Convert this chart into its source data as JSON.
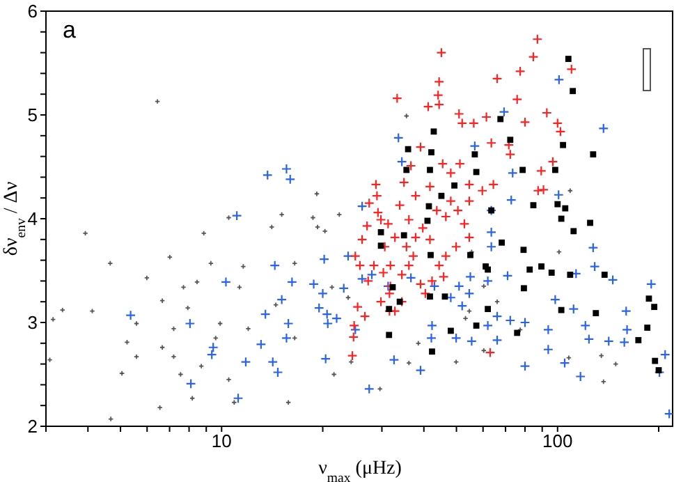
{
  "chart_data": {
    "type": "scatter",
    "xlabel": "ν$_{max}$  (μHz)",
    "ylabel": "δν$_{env}$ / Δν",
    "log": "x",
    "annotations": [
      "a"
    ],
    "xlim": [
      3,
      220
    ],
    "ylim": [
      2,
      6
    ],
    "xticks": [
      {
        "value": 3,
        "label": null
      },
      {
        "value": 4,
        "label": null
      },
      {
        "value": 5,
        "label": null
      },
      {
        "value": 6,
        "label": null
      },
      {
        "value": 7,
        "label": null
      },
      {
        "value": 8,
        "label": null
      },
      {
        "value": 9,
        "label": null
      },
      10,
      {
        "value": 20,
        "label": null
      },
      {
        "value": 30,
        "label": null
      },
      {
        "value": 40,
        "label": null
      },
      {
        "value": 50,
        "label": null
      },
      {
        "value": 60,
        "label": null
      },
      {
        "value": 70,
        "label": null
      },
      {
        "value": 80,
        "label": null
      },
      {
        "value": 90,
        "label": null
      },
      100,
      {
        "value": 200,
        "label": null
      }
    ],
    "yticks": [
      2,
      {
        "value": 2.2,
        "label": null
      },
      {
        "value": 2.4,
        "label": null
      },
      {
        "value": 2.6,
        "label": null
      },
      {
        "value": 2.8,
        "label": null
      },
      3,
      {
        "value": 3.2,
        "label": null
      },
      {
        "value": 3.4,
        "label": null
      },
      {
        "value": 3.6,
        "label": null
      },
      {
        "value": 3.8,
        "label": null
      },
      4,
      {
        "value": 4.2,
        "label": null
      },
      {
        "value": 4.4,
        "label": null
      },
      {
        "value": 4.6,
        "label": null
      },
      {
        "value": 4.8,
        "label": null
      },
      5,
      {
        "value": 5.2,
        "label": null
      },
      {
        "value": 5.4,
        "label": null
      },
      {
        "value": 5.6,
        "label": null
      },
      {
        "value": 5.8,
        "label": null
      },
      6
    ],
    "series": [
      {
        "color": "#555555",
        "marker": "cross",
        "x": [
          3.15,
          3.36,
          3.08,
          3.93,
          4.12,
          4.66,
          4.68,
          5.05,
          5.58,
          5.99,
          6.44,
          6.55,
          6.66,
          7.01,
          7.2,
          7.55,
          7.93,
          8.18,
          8.45,
          8.85,
          9.29,
          9.6,
          10.5,
          10.5,
          11.6,
          12.0,
          10.9,
          14.1,
          14.5,
          15.1,
          15.8,
          16.5,
          18.7,
          19.2,
          19.3,
          20.3,
          21.3,
          21.6,
          5.23,
          5.58,
          6.66,
          8.7,
          7.2,
          9.9,
          7.7,
          11.3,
          16.5,
          35.5,
          109,
          29.6,
          137,
          77.4,
          108,
          23.8,
          24.3,
          36.1,
          49.9,
          60.3,
          38.5,
          53.2,
          60.3,
          101,
          135,
          149,
          55.5,
          22.4,
          54.6,
          66.1
        ],
        "values": [
          3.03,
          3.12,
          2.64,
          3.86,
          3.11,
          3.57,
          2.07,
          2.51,
          2.99,
          3.43,
          5.13,
          2.18,
          3.21,
          3.63,
          2.94,
          2.5,
          3.14,
          2.27,
          3.39,
          3.86,
          3.57,
          2.85,
          2.45,
          4.01,
          3.54,
          2.94,
          2.23,
          3.92,
          3.17,
          4.04,
          2.23,
          2.85,
          4.01,
          4.24,
          3.92,
          3.88,
          3.34,
          2.5,
          2.81,
          2.67,
          2.76,
          2.58,
          2.67,
          2.99,
          3.34,
          3.34,
          3.57,
          4.99,
          4.27,
          2.36,
          2.43,
          2.93,
          2.66,
          3.24,
          2.62,
          2.61,
          2.62,
          2.73,
          2.8,
          3.04,
          3.35,
          3.68,
          2.68,
          2.6,
          3.68,
          4.04,
          3.11,
          3.2
        ]
      },
      {
        "color": "#2a62f0",
        "marker": "cross",
        "x": [
          5.36,
          8.05,
          8.1,
          9.44,
          9.35,
          10.3,
          11.1,
          11.2,
          11.8,
          13.1,
          13.5,
          13.7,
          14.4,
          15.1,
          15.6,
          16.0,
          16.2,
          15.8,
          14.7,
          14.2,
          15.6,
          18.8,
          19.5,
          20.0,
          20.2,
          20.6,
          20.4,
          20.7,
          137,
          101,
          69.3,
          56.7,
          73.5,
          63.5,
          72.8,
          100.7,
          63.5,
          63.5,
          127.6,
          129,
          146,
          113.5,
          71.0,
          62,
          55.0,
          50.9,
          54.6,
          52.0,
          48.1,
          43.0,
          36.6,
          31.3,
          28.0,
          98.4,
          111.6,
          72.3,
          66.1,
          62,
          80,
          93.8,
          121,
          124,
          142,
          158,
          160,
          161,
          190,
          209,
          201,
          215,
          80,
          105,
          117,
          93.8,
          66.1,
          55.5,
          49.9,
          42.1,
          42.3,
          39.1,
          32.6,
          27.5,
          25.0,
          26.2,
          23.8,
          26.2,
          33.6,
          34.4,
          23.1,
          22.0
        ],
        "values": [
          3.07,
          2.99,
          2.41,
          2.76,
          2.69,
          3.39,
          4.03,
          2.27,
          2.62,
          2.79,
          3.08,
          4.42,
          3.55,
          3.22,
          4.48,
          4.38,
          3.39,
          2.99,
          2.52,
          2.62,
          2.85,
          3.37,
          3.14,
          3.28,
          3.61,
          3.08,
          2.65,
          2.99,
          4.87,
          5.34,
          5.03,
          4.7,
          4.44,
          4.08,
          4.18,
          4.23,
          3.87,
          3.73,
          3.72,
          3.54,
          3.41,
          3.47,
          3.45,
          3.4,
          3.44,
          3.35,
          3.28,
          3.16,
          3.24,
          3.35,
          3.43,
          3.35,
          3.46,
          3.22,
          3.13,
          3.02,
          3.06,
          2.97,
          3.0,
          2.93,
          2.97,
          2.84,
          2.82,
          2.81,
          3.11,
          2.93,
          3.37,
          2.69,
          2.52,
          2.12,
          2.58,
          2.61,
          2.48,
          2.74,
          2.83,
          2.82,
          2.85,
          2.85,
          2.97,
          2.54,
          2.64,
          2.36,
          2.93,
          3.42,
          3.64,
          4.12,
          4.78,
          4.55,
          3.33,
          3.04
        ]
      },
      {
        "color": "#ff2020",
        "marker": "cross",
        "x": [
          87.1,
          45.1,
          84.7,
          110,
          66.1,
          44.4,
          77.4,
          33.3,
          44.1,
          41.2,
          44.4,
          50.9,
          61.4,
          75.8,
          80.0,
          92.9,
          100,
          102,
          52.0,
          56.3,
          39.1,
          63.5,
          71.6,
          72.3,
          89.4,
          51.2,
          48.1,
          45.5,
          64.4,
          54.6,
          90.8,
          87.5,
          96.8,
          28.8,
          29.0,
          27.5,
          29.2,
          27.1,
          26.2,
          25.0,
          25.8,
          27.3,
          25.4,
          24.8,
          26.7,
          30.6,
          31.8,
          32.8,
          33.9,
          34.9,
          36.6,
          37.8,
          36.1,
          35.5,
          37.2,
          34.4,
          31.6,
          29.8,
          32.8,
          31.8,
          39.1,
          39.7,
          41.7,
          43.7,
          46.5,
          48.1,
          50.5,
          52.8,
          54.6,
          49.9,
          46.5,
          44.4,
          42.3,
          40.4,
          45.8,
          30.3,
          28.4,
          29.8,
          31.3,
          37.8,
          36.1,
          34.4,
          31.6,
          63.0,
          24.5,
          24.7,
          41.7,
          54.6,
          59.7
        ],
        "values": [
          5.73,
          5.6,
          5.56,
          5.44,
          5.35,
          5.32,
          5.42,
          5.16,
          5.19,
          5.08,
          5.1,
          5.01,
          4.98,
          5.15,
          4.93,
          5.02,
          4.92,
          4.84,
          4.92,
          4.92,
          4.69,
          4.73,
          4.71,
          4.62,
          4.46,
          4.53,
          4.44,
          4.53,
          4.33,
          4.33,
          4.28,
          4.27,
          4.55,
          4.33,
          4.22,
          4.15,
          4.06,
          3.93,
          3.8,
          3.64,
          3.55,
          3.4,
          3.15,
          2.97,
          3.06,
          3.73,
          3.55,
          3.82,
          4.13,
          4.35,
          4.51,
          4.22,
          3.99,
          3.73,
          3.64,
          3.46,
          3.28,
          3.2,
          3.11,
          3.35,
          3.37,
          3.91,
          3.8,
          4.08,
          4.02,
          4.17,
          4.08,
          3.95,
          3.82,
          3.73,
          3.64,
          3.55,
          3.4,
          3.28,
          3.44,
          3.48,
          3.55,
          3.99,
          3.95,
          3.82,
          3.55,
          3.2,
          3.11,
          2.71,
          2.68,
          2.86,
          4.31,
          4.17,
          4.27
        ]
      },
      {
        "color": "#000000",
        "marker": "square",
        "x": [
          107.7,
          111,
          67.6,
          42.8,
          35.9,
          42.1,
          72.3,
          56.7,
          35.5,
          41.7,
          57.3,
          78.7,
          49.3,
          98.4,
          103.8,
          127.6,
          45.1,
          41.4,
          63.5,
          84.7,
          100,
          105.4,
          102.6,
          125,
          111.6,
          29.8,
          34.9,
          41.0,
          29.8,
          68.2,
          79.2,
          55.0,
          41.9,
          61.1,
          62.0,
          82.6,
          89.5,
          96.0,
          109,
          138,
          32.3,
          79.4,
          41.7,
          46.2,
          31.5,
          62.0,
          102.6,
          130,
          187,
          194,
          185,
          174,
          195,
          200,
          57.3,
          48.1,
          75.8,
          31.5,
          42.3,
          33.9
        ],
        "values": [
          5.54,
          5.23,
          4.96,
          4.84,
          4.67,
          4.64,
          4.76,
          4.62,
          4.47,
          4.47,
          4.45,
          4.47,
          4.32,
          4.47,
          4.71,
          4.62,
          4.22,
          4.12,
          4.08,
          4.13,
          4.14,
          4.1,
          4.0,
          3.96,
          3.88,
          3.87,
          3.84,
          3.98,
          3.74,
          3.77,
          3.7,
          3.65,
          3.65,
          3.54,
          3.51,
          3.51,
          3.54,
          3.48,
          3.46,
          3.46,
          3.34,
          3.33,
          3.25,
          3.25,
          3.13,
          3.13,
          3.12,
          3.09,
          3.23,
          3.15,
          2.95,
          2.83,
          2.63,
          2.54,
          2.97,
          2.92,
          2.9,
          2.88,
          2.72,
          3.2
        ]
      }
    ]
  }
}
